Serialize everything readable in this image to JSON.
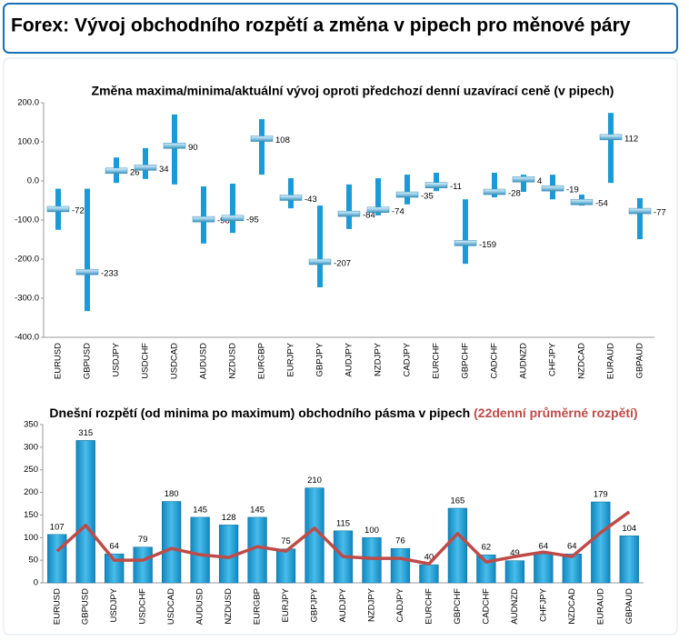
{
  "header": {
    "title": "Forex: Vývoj obchodního rozpětí a změna v pipech pro měnové páry"
  },
  "chart_data": [
    {
      "type": "range",
      "title": "Změna maxima/minima/aktuální vývoj oproti předchozí denní uzavírací ceně (v pipech)",
      "categories": [
        "EURUSD",
        "GBPUSD",
        "USDJPY",
        "USDCHF",
        "USDCAD",
        "AUDUSD",
        "NZDUSD",
        "EURGBP",
        "EURJPY",
        "GBPJPY",
        "AUDJPY",
        "NZDJPY",
        "CADJPY",
        "EURCHF",
        "GBPCHF",
        "CADCHF",
        "AUDNZD",
        "CHFJPY",
        "NZDCAD",
        "EURAUD",
        "GBPAUD"
      ],
      "values": [
        -72,
        -233,
        26,
        34,
        90,
        -98,
        -95,
        108,
        -43,
        -207,
        -84,
        -74,
        -35,
        -11,
        -159,
        -28,
        4,
        -19,
        -54,
        112,
        -77
      ],
      "highs": [
        -20,
        -20,
        60,
        84,
        170,
        -14,
        -7,
        158,
        7,
        -63,
        -9,
        7,
        16,
        21,
        -47,
        21,
        16,
        16,
        -35,
        174,
        -44
      ],
      "lows": [
        -125,
        -333,
        -5,
        5,
        -9,
        -160,
        -133,
        16,
        -70,
        -272,
        -123,
        -88,
        -60,
        -26,
        -212,
        -42,
        -28,
        -47,
        -63,
        -5,
        -149
      ],
      "color": "#1a9bd7",
      "ylim": [
        -400,
        200
      ],
      "yticks": [
        {
          "value": -400,
          "label": "-400.0"
        },
        {
          "value": -300,
          "label": "-300.0"
        },
        {
          "value": -200,
          "label": "-200.0"
        },
        {
          "value": -100,
          "label": "-100.0"
        },
        {
          "value": 0,
          "label": "0.0"
        },
        {
          "value": 100,
          "label": "100.0"
        },
        {
          "value": 200,
          "label": "200.0"
        }
      ]
    },
    {
      "type": "bar",
      "title": "Dnešní rozpětí (od minima po maximum) obchodního pásma v pipech",
      "categories": [
        "EURUSD",
        "GBPUSD",
        "USDJPY",
        "USDCHF",
        "USDCAD",
        "AUDUSD",
        "NZDUSD",
        "EURGBP",
        "EURJPY",
        "GBPJPY",
        "AUDJPY",
        "NZDJPY",
        "CADJPY",
        "EURCHF",
        "GBPCHF",
        "CADCHF",
        "AUDNZD",
        "CHFJPY",
        "NZDCAD",
        "EURAUD",
        "GBPAUD"
      ],
      "values": [
        107,
        315,
        64,
        79,
        180,
        145,
        128,
        145,
        75,
        210,
        115,
        100,
        76,
        40,
        165,
        62,
        49,
        64,
        64,
        179,
        104
      ],
      "color": "#1a9bd7",
      "line": {
        "name": "(22denní průměrné rozpětí)",
        "color": "#be4b48",
        "values": [
          70,
          127,
          50,
          50,
          76,
          62,
          56,
          80,
          70,
          121,
          58,
          54,
          54,
          42,
          109,
          46,
          58,
          68,
          58,
          111,
          157
        ]
      },
      "ylim": [
        0,
        350
      ],
      "yticks": [
        0,
        50,
        100,
        150,
        200,
        250,
        300,
        350
      ]
    }
  ]
}
